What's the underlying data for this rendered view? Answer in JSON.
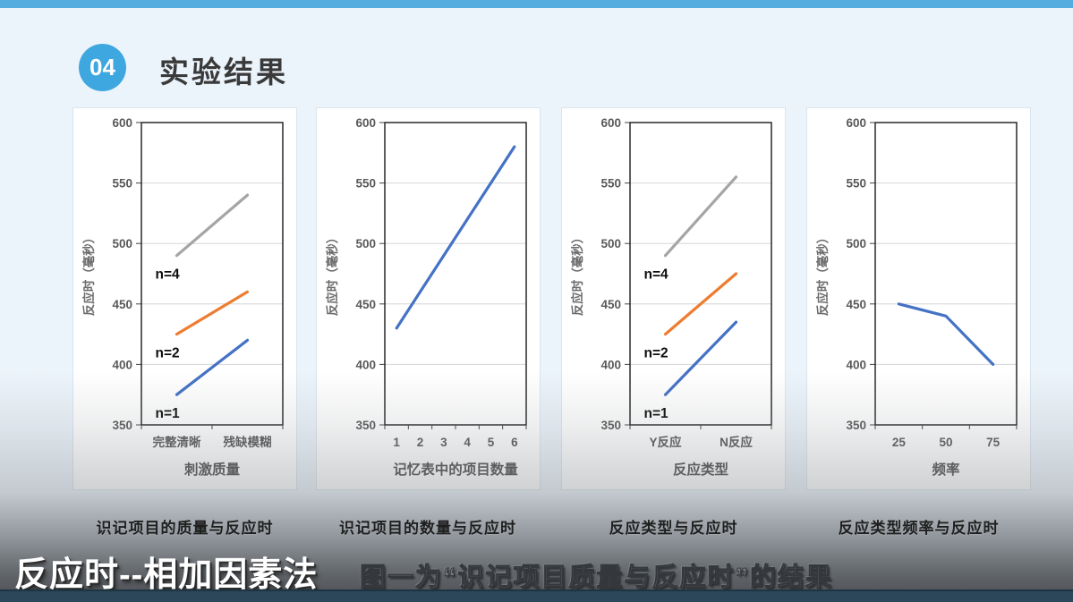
{
  "header": {
    "badge": "04",
    "title": "实验结果"
  },
  "colors": {
    "topbar": "#55ACDE",
    "badge": "#3EA7E0",
    "background": "#ECF4FB",
    "bottom_bar": "#2C4759",
    "series_blue": "#4472C4",
    "series_orange": "#ED7D31",
    "series_gray": "#A5A5A5"
  },
  "overlay": {
    "subtitle": "反应时--相加因素法",
    "embossed": "图一为“识记项目质量与反应时”的结果"
  },
  "chart_data": [
    {
      "type": "line",
      "caption": "识记项目的质量与反应时",
      "xlabel": "刺激质量",
      "ylabel": "反应时（毫秒）",
      "ylim": [
        350,
        600
      ],
      "ytick_step": 50,
      "grid": true,
      "legend_position": "inline-labels",
      "categories": [
        "完整清晰",
        "残缺模糊"
      ],
      "series": [
        {
          "name": "n=1",
          "label": "n=1",
          "color": "#4472C4",
          "values": [
            375,
            420
          ]
        },
        {
          "name": "n=2",
          "label": "n=2",
          "color": "#ED7D31",
          "values": [
            425,
            460
          ]
        },
        {
          "name": "n=4",
          "label": "n=4",
          "color": "#A5A5A5",
          "values": [
            490,
            540
          ]
        }
      ]
    },
    {
      "type": "line",
      "caption": "识记项目的数量与反应时",
      "xlabel": "记忆表中的项目数量",
      "ylabel": "反应时（毫秒）",
      "ylim": [
        350,
        600
      ],
      "ytick_step": 50,
      "grid": true,
      "legend_position": "none",
      "categories": [
        "1",
        "2",
        "3",
        "4",
        "5",
        "6"
      ],
      "series": [
        {
          "name": "反应时",
          "label": "",
          "color": "#4472C4",
          "values": [
            430,
            460,
            490,
            520,
            550,
            580
          ]
        }
      ]
    },
    {
      "type": "line",
      "caption": "反应类型与反应时",
      "xlabel": "反应类型",
      "ylabel": "反应时（毫秒）",
      "ylim": [
        350,
        600
      ],
      "ytick_step": 50,
      "grid": true,
      "legend_position": "inline-labels",
      "categories": [
        "Y反应",
        "N反应"
      ],
      "series": [
        {
          "name": "n=1",
          "label": "n=1",
          "color": "#4472C4",
          "values": [
            375,
            435
          ]
        },
        {
          "name": "n=2",
          "label": "n=2",
          "color": "#ED7D31",
          "values": [
            425,
            475
          ]
        },
        {
          "name": "n=4",
          "label": "n=4",
          "color": "#A5A5A5",
          "values": [
            490,
            555
          ]
        }
      ]
    },
    {
      "type": "line",
      "caption": "反应类型频率与反应时",
      "xlabel": "频率",
      "ylabel": "反应时（毫秒）",
      "ylim": [
        350,
        600
      ],
      "ytick_step": 50,
      "grid": true,
      "legend_position": "none",
      "categories": [
        "25",
        "50",
        "75"
      ],
      "series": [
        {
          "name": "反应时",
          "label": "",
          "color": "#4472C4",
          "values": [
            450,
            440,
            400
          ]
        }
      ]
    }
  ]
}
